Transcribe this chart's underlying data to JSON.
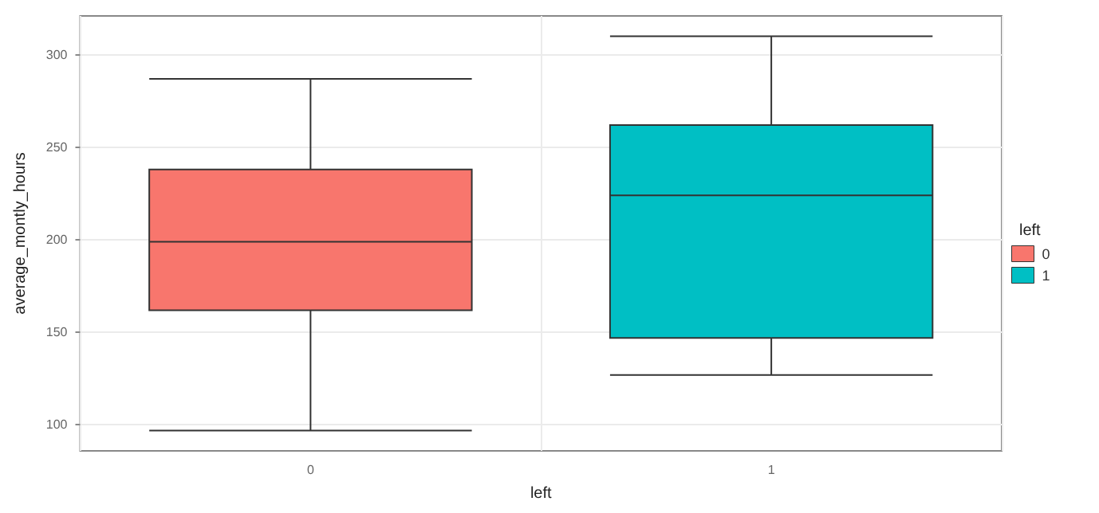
{
  "chart_data": {
    "type": "box",
    "xlabel": "left",
    "ylabel": "average_montly_hours",
    "legend_title": "left",
    "legend": "right",
    "grid": true,
    "categories": [
      "0",
      "1"
    ],
    "series": [
      {
        "name": "0",
        "color": "#f8766d",
        "boxes": [
          {
            "low": 97,
            "q1": 162,
            "median": 199,
            "q3": 238,
            "high": 287
          },
          null
        ]
      },
      {
        "name": "1",
        "color": "#00bfc4",
        "boxes": [
          null,
          {
            "low": 127,
            "q1": 147,
            "median": 224,
            "q3": 262,
            "high": 310
          }
        ]
      }
    ],
    "ylim": [
      86,
      321
    ],
    "yticks": [
      100,
      150,
      200,
      250,
      300
    ]
  }
}
